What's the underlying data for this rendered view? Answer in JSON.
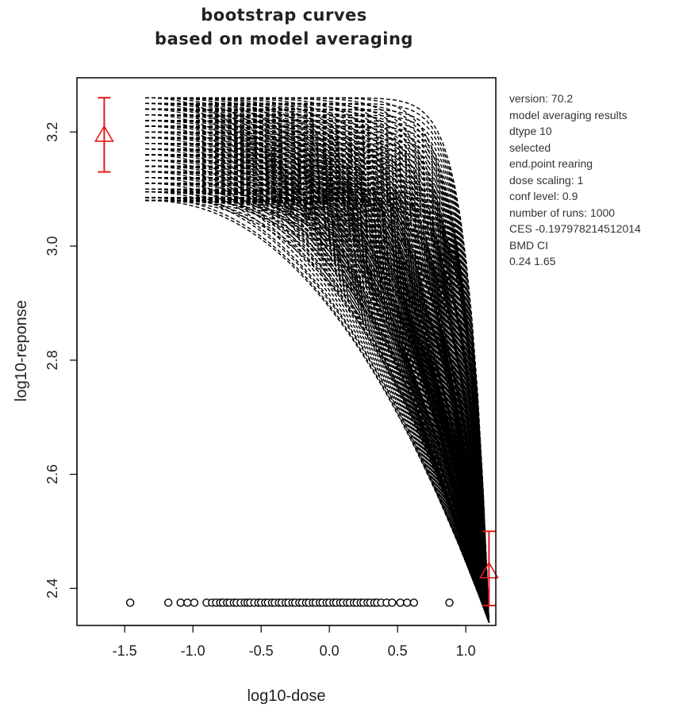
{
  "chart_data": {
    "type": "line",
    "title": [
      "bootstrap curves",
      "based on model averaging"
    ],
    "xlabel": "log10-dose",
    "ylabel": "log10-reponse",
    "xlim": [
      -1.85,
      1.22
    ],
    "ylim": [
      2.335,
      3.295
    ],
    "xticks": [
      -1.5,
      -1.0,
      -0.5,
      0.0,
      0.5,
      1.0
    ],
    "xtick_labels": [
      "-1.5",
      "-1.0",
      "-0.5",
      "0.0",
      "0.5",
      "1.0"
    ],
    "yticks": [
      2.4,
      2.6,
      2.8,
      3.0,
      3.2
    ],
    "ytick_labels": [
      "2.4",
      "2.6",
      "2.8",
      "3.0",
      "3.2"
    ],
    "curve_colour": "#000000",
    "marker_colour": "#e31a1c",
    "curves": {
      "x_start": -1.35,
      "x_end": 1.17,
      "start_levels": [
        3.26,
        3.25,
        3.24,
        3.23,
        3.22,
        3.21,
        3.2,
        3.19,
        3.18,
        3.17,
        3.16,
        3.15,
        3.14,
        3.13,
        3.12,
        3.11,
        3.1,
        3.095,
        3.085,
        3.08
      ],
      "end_level": 2.34,
      "shape_exponents": [
        2.2,
        2.6,
        3.0,
        3.4,
        3.8,
        4.2,
        4.8,
        5.5,
        6.5,
        8.0,
        10.0,
        13.0,
        17.0
      ]
    },
    "group_means": [
      {
        "x": -1.65,
        "y": 3.195,
        "ci_low": 3.13,
        "ci_high": 3.26
      },
      {
        "x": 1.17,
        "y": 2.43,
        "ci_low": 2.37,
        "ci_high": 2.5
      }
    ],
    "doses_rug": {
      "y": 2.375,
      "x": [
        -1.46,
        -1.18,
        -1.09,
        -1.04,
        -0.99,
        -0.9,
        -0.86,
        -0.83,
        -0.8,
        -0.78,
        -0.75,
        -0.73,
        -0.7,
        -0.68,
        -0.65,
        -0.62,
        -0.6,
        -0.58,
        -0.55,
        -0.52,
        -0.5,
        -0.47,
        -0.45,
        -0.42,
        -0.4,
        -0.37,
        -0.35,
        -0.32,
        -0.3,
        -0.27,
        -0.25,
        -0.22,
        -0.2,
        -0.17,
        -0.15,
        -0.12,
        -0.1,
        -0.07,
        -0.05,
        -0.02,
        0.0,
        0.03,
        0.05,
        0.08,
        0.1,
        0.13,
        0.15,
        0.18,
        0.2,
        0.23,
        0.25,
        0.28,
        0.3,
        0.33,
        0.35,
        0.38,
        0.42,
        0.46,
        0.52,
        0.57,
        0.62,
        0.88
      ]
    }
  },
  "info": {
    "version": "version: 70.2",
    "model_averaging": " model averaging results",
    "dtype": " dtype   10",
    "selected": " selected",
    "endpoint": "   end.point rearing",
    "dose_scaling": " dose scaling:  1",
    "conf_level": " conf level:  0.9",
    "number_of_runs": " number of  runs:  1000",
    "ces": " CES   -0.197978214512014",
    "bmd_ci": " BMD CI",
    "bmd_ci_values": "   0.24  1.65"
  }
}
